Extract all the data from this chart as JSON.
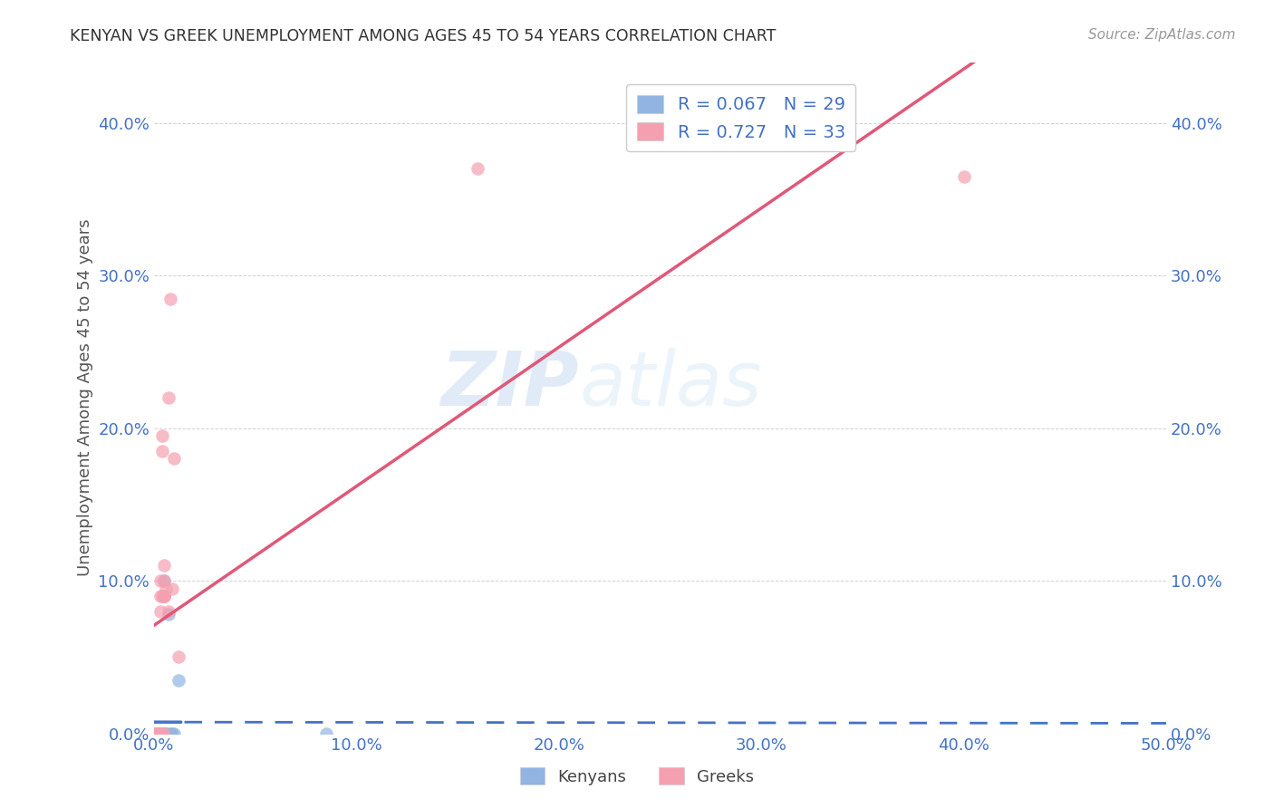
{
  "title": "KENYAN VS GREEK UNEMPLOYMENT AMONG AGES 45 TO 54 YEARS CORRELATION CHART",
  "source": "Source: ZipAtlas.com",
  "ylabel": "Unemployment Among Ages 45 to 54 years",
  "xlim": [
    0.0,
    0.5
  ],
  "ylim": [
    0.0,
    0.44
  ],
  "x_ticks": [
    0.0,
    0.1,
    0.2,
    0.3,
    0.4,
    0.5
  ],
  "x_tick_labels": [
    "0.0%",
    "10.0%",
    "20.0%",
    "30.0%",
    "40.0%",
    "50.0%"
  ],
  "y_ticks": [
    0.0,
    0.1,
    0.2,
    0.3,
    0.4
  ],
  "y_tick_labels": [
    "0.0%",
    "10.0%",
    "20.0%",
    "30.0%",
    "40.0%"
  ],
  "kenyan_R": "0.067",
  "kenyan_N": "29",
  "greek_R": "0.727",
  "greek_N": "33",
  "kenyan_color": "#92b4e3",
  "greek_color": "#f5a0b0",
  "kenyan_line_color": "#4472c4",
  "greek_line_color": "#e05878",
  "tick_color": "#4472c4",
  "kenyan_x": [
    0.0,
    0.0,
    0.0,
    0.0,
    0.0,
    0.002,
    0.002,
    0.002,
    0.002,
    0.003,
    0.003,
    0.003,
    0.003,
    0.003,
    0.004,
    0.004,
    0.004,
    0.005,
    0.005,
    0.005,
    0.006,
    0.006,
    0.007,
    0.008,
    0.008,
    0.009,
    0.01,
    0.012,
    0.085
  ],
  "kenyan_y": [
    0.0,
    0.0,
    0.0,
    0.0,
    0.0,
    0.0,
    0.0,
    0.0,
    0.0,
    0.0,
    0.0,
    0.0,
    0.0,
    0.0,
    0.0,
    0.0,
    0.0,
    0.0,
    0.0,
    0.1,
    0.0,
    0.0,
    0.078,
    0.0,
    0.0,
    0.0,
    0.0,
    0.035,
    0.0
  ],
  "greek_x": [
    0.0,
    0.0,
    0.0,
    0.0,
    0.0,
    0.001,
    0.001,
    0.002,
    0.002,
    0.002,
    0.003,
    0.003,
    0.003,
    0.004,
    0.004,
    0.004,
    0.004,
    0.004,
    0.005,
    0.005,
    0.005,
    0.005,
    0.005,
    0.005,
    0.006,
    0.007,
    0.007,
    0.008,
    0.009,
    0.01,
    0.012,
    0.16,
    0.4
  ],
  "greek_y": [
    0.0,
    0.0,
    0.0,
    0.0,
    0.0,
    0.0,
    0.0,
    0.0,
    0.0,
    0.0,
    0.08,
    0.09,
    0.1,
    0.0,
    0.0,
    0.09,
    0.185,
    0.195,
    0.0,
    0.09,
    0.09,
    0.09,
    0.1,
    0.11,
    0.095,
    0.22,
    0.08,
    0.285,
    0.095,
    0.18,
    0.05,
    0.37,
    0.365
  ]
}
